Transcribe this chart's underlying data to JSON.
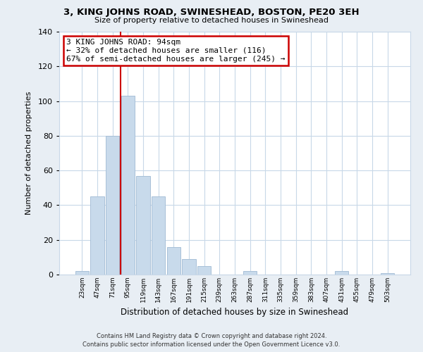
{
  "title": "3, KING JOHNS ROAD, SWINESHEAD, BOSTON, PE20 3EH",
  "subtitle": "Size of property relative to detached houses in Swineshead",
  "xlabel": "Distribution of detached houses by size in Swineshead",
  "ylabel": "Number of detached properties",
  "bin_labels": [
    "23sqm",
    "47sqm",
    "71sqm",
    "95sqm",
    "119sqm",
    "143sqm",
    "167sqm",
    "191sqm",
    "215sqm",
    "239sqm",
    "263sqm",
    "287sqm",
    "311sqm",
    "335sqm",
    "359sqm",
    "383sqm",
    "407sqm",
    "431sqm",
    "455sqm",
    "479sqm",
    "503sqm"
  ],
  "bar_values": [
    2,
    45,
    80,
    103,
    57,
    45,
    16,
    9,
    5,
    0,
    0,
    2,
    0,
    0,
    0,
    0,
    0,
    2,
    0,
    0,
    1
  ],
  "bar_color": "#c8daeb",
  "bar_edge_color": "#a8c0d8",
  "vline_color": "#cc0000",
  "annotation_text": "3 KING JOHNS ROAD: 94sqm\n← 32% of detached houses are smaller (116)\n67% of semi-detached houses are larger (245) →",
  "annotation_box_color": "#ffffff",
  "annotation_box_edge": "#cc0000",
  "ylim": [
    0,
    140
  ],
  "yticks": [
    0,
    20,
    40,
    60,
    80,
    100,
    120,
    140
  ],
  "footer_line1": "Contains HM Land Registry data © Crown copyright and database right 2024.",
  "footer_line2": "Contains public sector information licensed under the Open Government Licence v3.0.",
  "bg_color": "#e8eef4",
  "plot_bg_color": "#ffffff",
  "grid_color": "#c8d8e8"
}
